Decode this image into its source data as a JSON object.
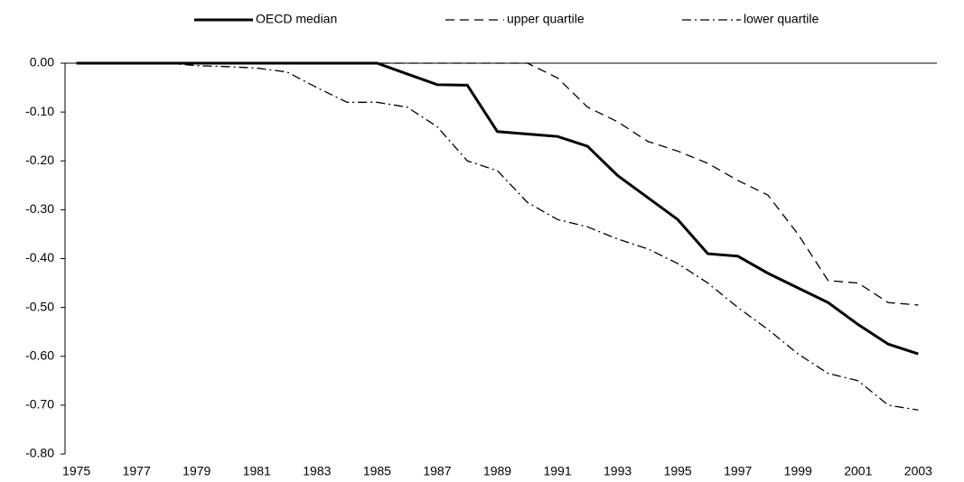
{
  "chart_data": {
    "type": "line",
    "categories": [
      "1975",
      null,
      "1977",
      null,
      "1979",
      null,
      "1981",
      null,
      "1983",
      null,
      "1985",
      null,
      "1987",
      null,
      "1989",
      null,
      "1991",
      null,
      "1993",
      null,
      "1995",
      null,
      "1997",
      null,
      "1999",
      null,
      "2001",
      null,
      "2003"
    ],
    "series": [
      {
        "name": "OECD median",
        "color": "#000000",
        "style": "solid",
        "values": [
          0,
          0,
          0,
          0,
          0,
          0,
          0,
          0,
          0,
          0,
          0,
          -0.022,
          -0.044,
          -0.045,
          -0.14,
          -0.145,
          -0.15,
          -0.17,
          -0.23,
          -0.275,
          -0.32,
          -0.39,
          -0.395,
          -0.43,
          -0.46,
          -0.49,
          -0.535,
          -0.575,
          -0.595
        ]
      },
      {
        "name": "upper quartile",
        "color": "#000000",
        "style": "dashed",
        "values": [
          0,
          0,
          0,
          0,
          0,
          0,
          0,
          0,
          0,
          0,
          0,
          0,
          0,
          0,
          0,
          0,
          -0.03,
          -0.09,
          -0.12,
          -0.16,
          -0.18,
          -0.205,
          -0.24,
          -0.27,
          -0.35,
          -0.445,
          -0.45,
          -0.49,
          -0.495
        ]
      },
      {
        "name": "lower quartile",
        "color": "#000000",
        "style": "dashdot",
        "values": [
          0,
          0,
          0,
          0,
          -0.005,
          -0.007,
          -0.01,
          -0.018,
          -0.05,
          -0.08,
          -0.08,
          -0.09,
          -0.13,
          -0.2,
          -0.22,
          -0.285,
          -0.32,
          -0.335,
          -0.36,
          -0.38,
          -0.41,
          -0.45,
          -0.5,
          -0.545,
          -0.595,
          -0.635,
          -0.65,
          -0.7,
          -0.71
        ]
      }
    ],
    "ylim": [
      -0.8,
      0
    ],
    "yticks": [
      {
        "value": 0,
        "label": "0.00"
      },
      {
        "value": -0.1,
        "label": "-0.10"
      },
      {
        "value": -0.2,
        "label": "-0.20"
      },
      {
        "value": -0.3,
        "label": "-0.30"
      },
      {
        "value": -0.4,
        "label": "-0.40"
      },
      {
        "value": -0.5,
        "label": "-0.50"
      },
      {
        "value": -0.6,
        "label": "-0.60"
      },
      {
        "value": -0.7,
        "label": "-0.70"
      },
      {
        "value": -0.8,
        "label": "-0.80"
      }
    ],
    "grid": false,
    "legend": "top"
  }
}
